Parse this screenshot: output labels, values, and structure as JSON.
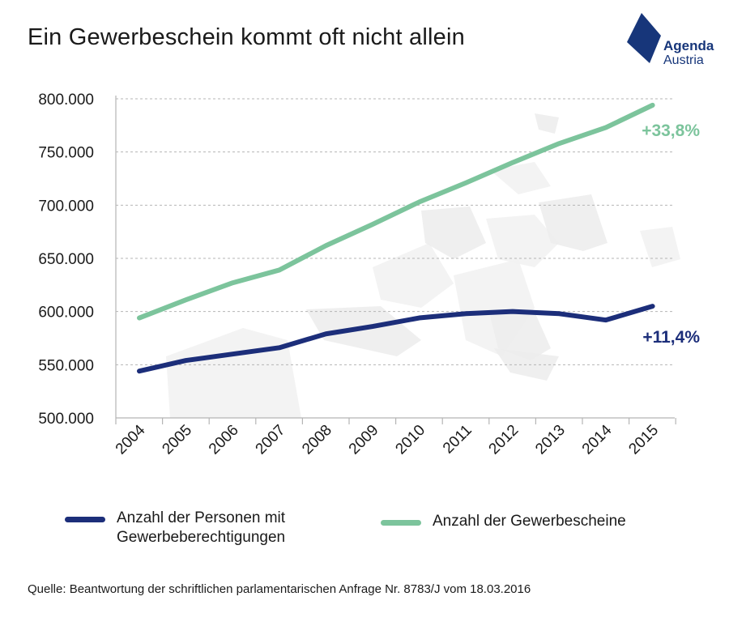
{
  "title": "Ein Gewerbeschein kommt oft nicht allein",
  "logo": {
    "line1": "Agenda",
    "line2": "Austria",
    "color": "#17367a"
  },
  "source": "Quelle: Beantwortung der schriftlichen parlamentarischen Anfrage Nr. 8783/J vom 18.03.2016",
  "chart_data": {
    "type": "line",
    "title": "Ein Gewerbeschein kommt oft nicht allein",
    "xlabel": "",
    "ylabel": "",
    "categories": [
      "2004",
      "2005",
      "2006",
      "2007",
      "2008",
      "2009",
      "2010",
      "2011",
      "2012",
      "2013",
      "2014",
      "2015"
    ],
    "y_tick_labels": [
      "500.000",
      "550.000",
      "600.000",
      "650.000",
      "700.000",
      "750.000",
      "800.000"
    ],
    "y_ticks": [
      500000,
      550000,
      600000,
      650000,
      700000,
      750000,
      800000
    ],
    "ylim": [
      500000,
      800000
    ],
    "grid": "horizontal dashed",
    "legend_position": "bottom",
    "series": [
      {
        "name": "Anzahl der Personen mit Gewerbeberechtigungen",
        "color": "#1c2e7a",
        "values": [
          544000,
          554000,
          560000,
          566000,
          579000,
          586000,
          594000,
          598000,
          600000,
          598000,
          592000,
          605000
        ],
        "end_label": "+11,4%"
      },
      {
        "name": "Anzahl der Gewerbescheine",
        "color": "#7cc49c",
        "values": [
          594000,
          611000,
          627000,
          639000,
          662000,
          682000,
          703000,
          721000,
          740000,
          758000,
          773000,
          794000
        ],
        "end_label": "+33,8%"
      }
    ],
    "legend": [
      {
        "line1": "Anzahl der Personen mit",
        "line2": "Gewerbeberechtigungen",
        "color": "#1c2e7a"
      },
      {
        "line1": "Anzahl der Gewerbescheine",
        "line2": "",
        "color": "#7cc49c"
      }
    ]
  }
}
